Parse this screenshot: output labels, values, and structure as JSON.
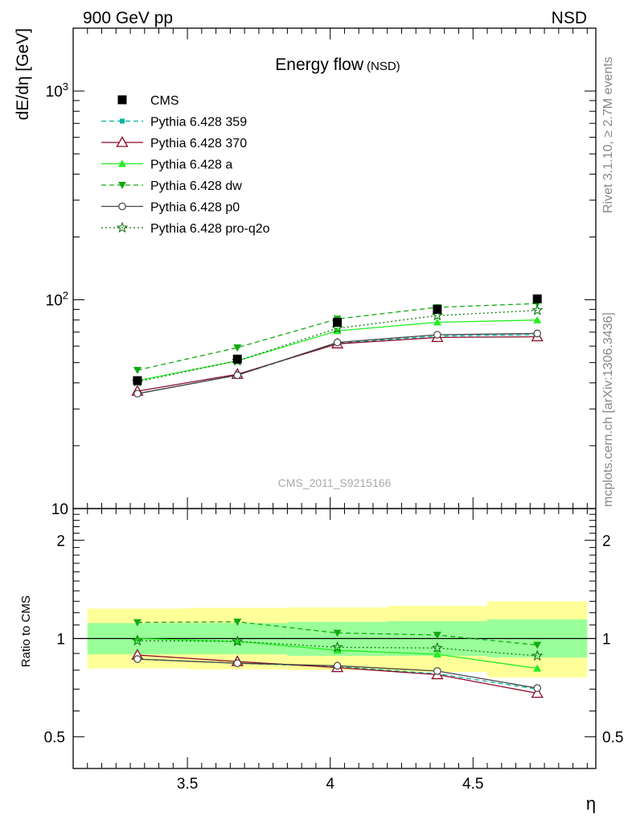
{
  "header": {
    "left": "900 GeV pp",
    "right": "NSD"
  },
  "side_text": {
    "rivet": "Rivet 3.1.10, ≥ 2.7M events",
    "mcplots": "mcplots.cern.ch [arXiv:1306.3436]"
  },
  "chart_data": [
    {
      "type": "line",
      "title": "Energy flow",
      "title_suffix": "(NSD)",
      "ylabel": "dE/dη [GeV]",
      "yscale": "log",
      "ylim": [
        10,
        2000
      ],
      "y_tick_labels": [
        "10",
        "10^2",
        "10^3"
      ],
      "xlim": [
        3.1,
        4.93
      ],
      "watermark": "CMS_2011_S9215166",
      "legend_position": "top-left",
      "x": [
        3.325,
        3.675,
        4.025,
        4.375,
        4.725
      ],
      "data": {
        "name": "CMS",
        "color": "#000000",
        "marker": "square",
        "values": [
          41,
          52,
          78,
          90,
          101
        ]
      },
      "series": [
        {
          "name": "Pythia 6.428 359",
          "color": "#00b3a0",
          "dash": "dashed",
          "marker": "small-square",
          "values": [
            35.5,
            43.5,
            62,
            67,
            68
          ]
        },
        {
          "name": "Pythia 6.428 370",
          "color": "#8b0a28",
          "dash": "solid",
          "marker": "open-triangle",
          "values": [
            36.5,
            44,
            61.5,
            66,
            66.5
          ]
        },
        {
          "name": "Pythia 6.428 a",
          "color": "#22ee22",
          "dash": "solid",
          "marker": "triangle",
          "values": [
            41,
            51,
            71,
            78,
            80
          ]
        },
        {
          "name": "Pythia 6.428 dw",
          "color": "#11aa11",
          "dash": "dashed",
          "marker": "triangle-down",
          "values": [
            46,
            59,
            81,
            92,
            96
          ]
        },
        {
          "name": "Pythia 6.428 p0",
          "color": "#444444",
          "dash": "solid",
          "marker": "open-circle",
          "values": [
            35.5,
            43.5,
            62.5,
            68,
            69
          ]
        },
        {
          "name": "Pythia 6.428 pro-q2o",
          "color": "#117711",
          "dash": "dotted",
          "marker": "open-star",
          "values": [
            40.5,
            51,
            73,
            84,
            89
          ]
        }
      ]
    },
    {
      "type": "line",
      "ylabel": "Ratio to CMS",
      "xlabel": "η",
      "yscale": "log",
      "ylim": [
        0.4,
        2.5
      ],
      "y_tick_labels": [
        "0.5",
        "1",
        "2"
      ],
      "x_tick_labels": [
        "3.5",
        "4",
        "4.5"
      ],
      "x": [
        3.325,
        3.675,
        4.025,
        4.375,
        4.725
      ],
      "bands": {
        "bin_edges": [
          3.15,
          3.5,
          3.85,
          4.2,
          4.55,
          4.9
        ],
        "inner_low": [
          0.895,
          0.895,
          0.885,
          0.885,
          0.875
        ],
        "inner_high": [
          1.115,
          1.115,
          1.125,
          1.13,
          1.145
        ],
        "outer_low": [
          0.81,
          0.805,
          0.8,
          0.79,
          0.76
        ],
        "outer_high": [
          1.235,
          1.24,
          1.245,
          1.26,
          1.3
        ],
        "inner_color": "#99ff99",
        "outer_color": "#ffff99"
      },
      "series": [
        {
          "name": "Pythia 6.428 359",
          "values": [
            0.865,
            0.84,
            0.82,
            0.78,
            0.7
          ]
        },
        {
          "name": "Pythia 6.428 370",
          "values": [
            0.89,
            0.85,
            0.815,
            0.775,
            0.68
          ]
        },
        {
          "name": "Pythia 6.428 a",
          "values": [
            1.0,
            0.98,
            0.92,
            0.895,
            0.81
          ]
        },
        {
          "name": "Pythia 6.428 dw",
          "values": [
            1.12,
            1.125,
            1.04,
            1.025,
            0.955
          ]
        },
        {
          "name": "Pythia 6.428 p0",
          "values": [
            0.865,
            0.84,
            0.825,
            0.795,
            0.705
          ]
        },
        {
          "name": "Pythia 6.428 pro-q2o",
          "values": [
            0.985,
            0.98,
            0.94,
            0.935,
            0.885
          ]
        }
      ]
    }
  ]
}
